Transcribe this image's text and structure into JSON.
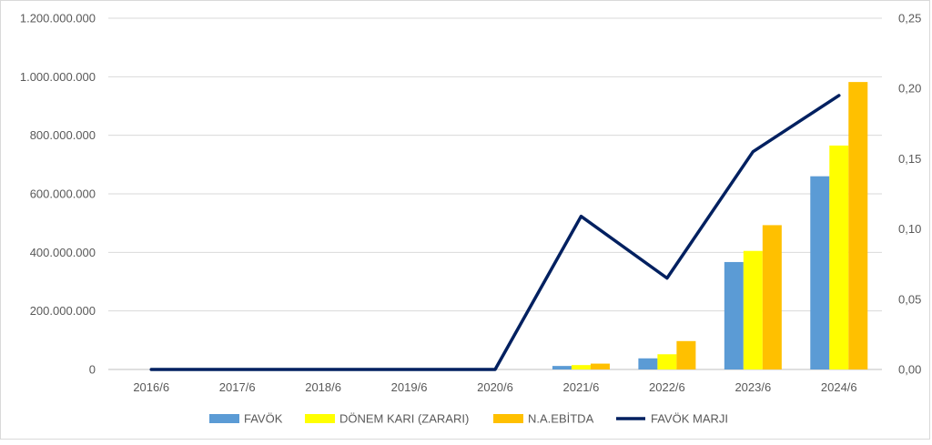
{
  "chart_data": {
    "type": "bar+line",
    "title": "",
    "categories": [
      "2016/6",
      "2017/6",
      "2018/6",
      "2019/6",
      "2020/6",
      "2021/6",
      "2022/6",
      "2023/6",
      "2024/6"
    ],
    "series": [
      {
        "name": "FAVÖK",
        "type": "bar",
        "axis": "left",
        "color": "#5b9bd5",
        "values": [
          0,
          0,
          0,
          0,
          0,
          12000000,
          38000000,
          367000000,
          660000000
        ]
      },
      {
        "name": "DÖNEM KARI (ZARARI)",
        "type": "bar",
        "axis": "left",
        "color": "#ffff00",
        "values": [
          0,
          0,
          0,
          0,
          0,
          15000000,
          52000000,
          405000000,
          765000000
        ]
      },
      {
        "name": "N.A.EBİTDA",
        "type": "bar",
        "axis": "left",
        "color": "#ffc000",
        "values": [
          0,
          0,
          0,
          0,
          0,
          20000000,
          97000000,
          493000000,
          982000000
        ]
      },
      {
        "name": "FAVÖK MARJI",
        "type": "line",
        "axis": "right",
        "color": "#002060",
        "values": [
          0,
          0,
          0,
          0,
          0,
          0.109,
          0.065,
          0.155,
          0.195
        ]
      }
    ],
    "y_left": {
      "min": 0,
      "max": 1200000000,
      "ticks": [
        "0",
        "200.000.000",
        "400.000.000",
        "600.000.000",
        "800.000.000",
        "1.000.000.000",
        "1.200.000.000"
      ]
    },
    "y_right": {
      "min": 0,
      "max": 0.25,
      "ticks": [
        "0,00",
        "0,05",
        "0,10",
        "0,15",
        "0,20",
        "0,25"
      ]
    },
    "grid": "horizontal",
    "legend": "bottom"
  }
}
